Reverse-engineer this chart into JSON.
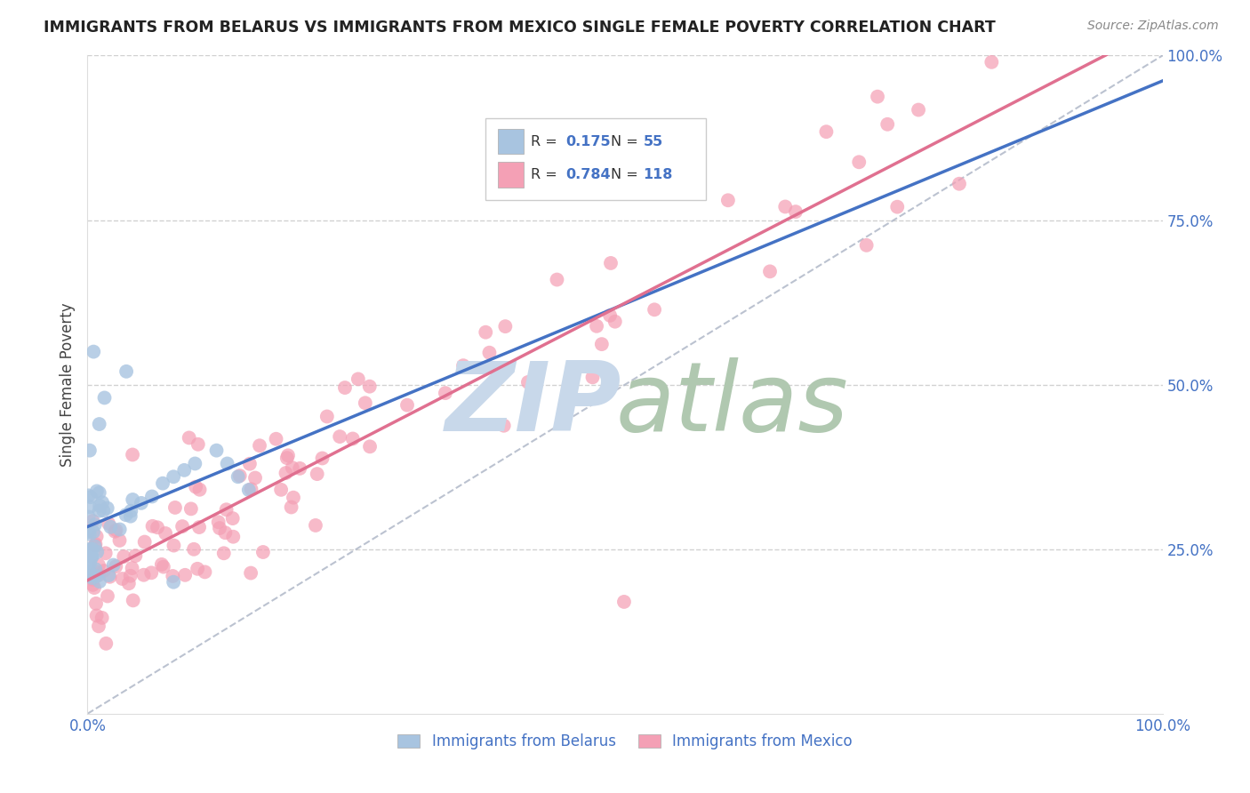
{
  "title": "IMMIGRANTS FROM BELARUS VS IMMIGRANTS FROM MEXICO SINGLE FEMALE POVERTY CORRELATION CHART",
  "source": "Source: ZipAtlas.com",
  "ylabel": "Single Female Poverty",
  "legend_label1": "Immigrants from Belarus",
  "legend_label2": "Immigrants from Mexico",
  "legend_r1_val": "0.175",
  "legend_n1_val": "55",
  "legend_r2_val": "0.784",
  "legend_n2_val": "118",
  "color_belarus": "#a8c4e0",
  "color_mexico": "#f4a0b5",
  "line_color_belarus": "#4472c4",
  "line_color_mexico": "#e07090",
  "background_color": "#ffffff",
  "watermark_zip_color": "#c8d8ea",
  "watermark_atlas_color": "#b0c8b0",
  "grid_color": "#cccccc",
  "tick_color": "#4472c4",
  "title_color": "#222222",
  "source_color": "#888888",
  "ylabel_color": "#444444"
}
